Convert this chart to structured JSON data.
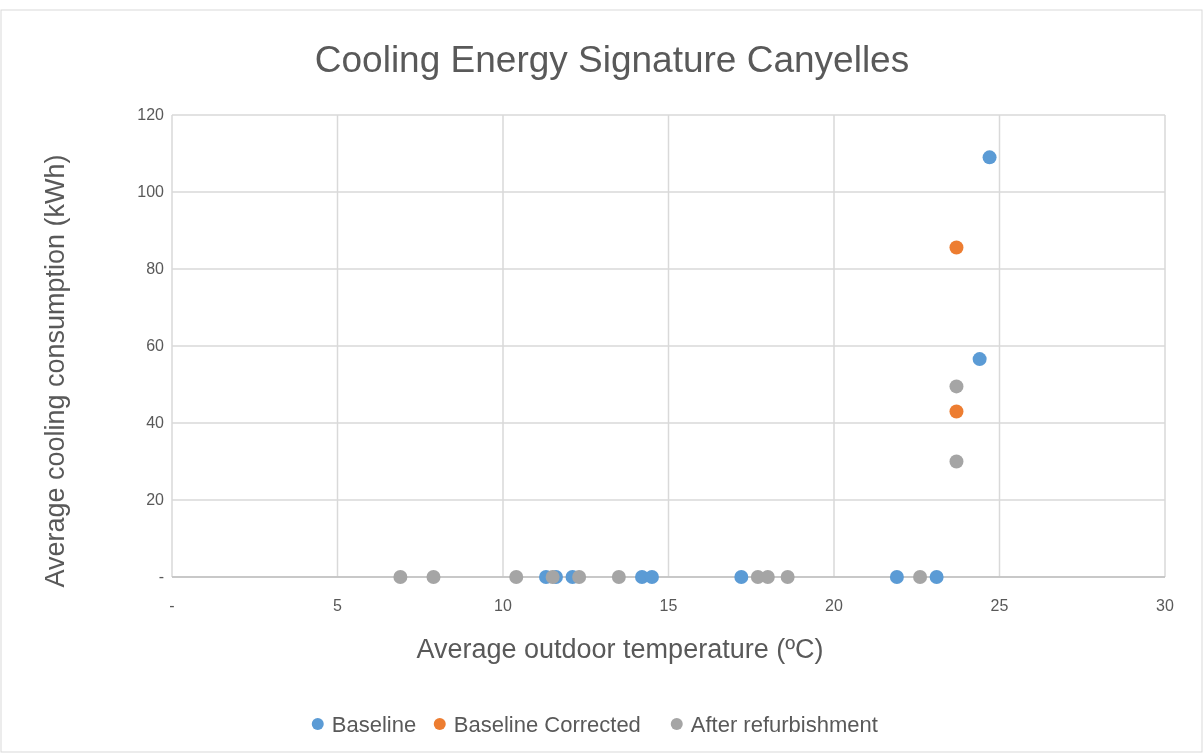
{
  "chart_data": {
    "type": "scatter",
    "title": "Cooling Energy Signature Canyelles",
    "xlabel": "Average outdoor temperature (ºC)",
    "ylabel": "Average  cooling consumption  (kWh)",
    "xlim": [
      0,
      30
    ],
    "xticks": [
      {
        "value": 0,
        "label": "-"
      },
      5,
      10,
      15,
      20,
      25,
      30
    ],
    "ylim": [
      0,
      120
    ],
    "yticks": [
      {
        "value": 0,
        "label": "-"
      },
      20,
      40,
      60,
      80,
      100,
      120
    ],
    "grid": true,
    "legend": "bottom",
    "marker": "circle",
    "series": [
      {
        "name": "Baseline",
        "color": "#5b9bd5",
        "x": [
          11.3,
          11.6,
          12.1,
          14.2,
          14.5,
          17.2,
          21.9,
          23.1,
          24.4,
          24.7
        ],
        "values": [
          0,
          0,
          0,
          0,
          0,
          0,
          0,
          0,
          56.6,
          109
        ]
      },
      {
        "name": "Baseline Corrected",
        "color": "#ed7d31",
        "x": [
          23.7,
          23.7
        ],
        "values": [
          85.6,
          43
        ]
      },
      {
        "name": "After refurbishment",
        "color": "#a5a5a5",
        "x": [
          6.9,
          7.9,
          10.4,
          11.5,
          12.3,
          13.5,
          17.7,
          18,
          18.6,
          22.6,
          23.7,
          23.7
        ],
        "values": [
          0,
          0,
          0,
          0,
          0,
          0,
          0,
          0,
          0,
          0,
          49.5,
          30
        ]
      }
    ]
  }
}
